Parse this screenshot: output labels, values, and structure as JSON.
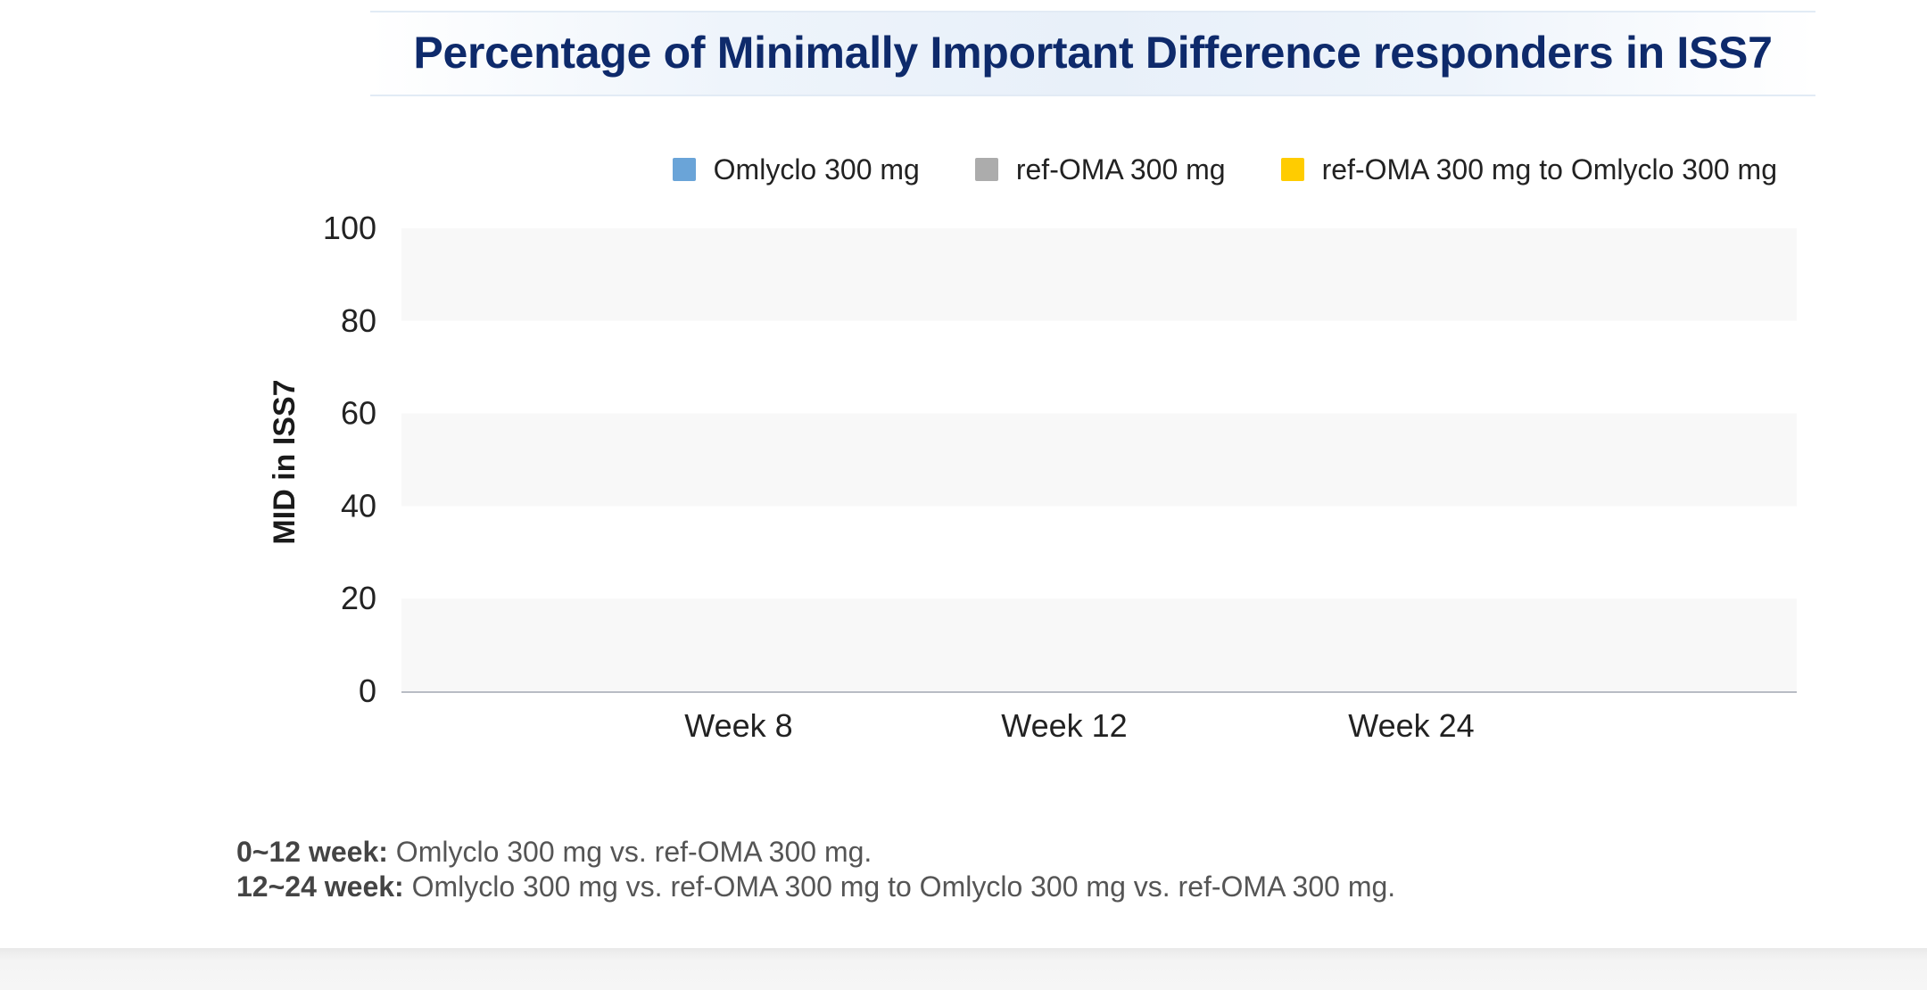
{
  "chart_data": {
    "type": "bar",
    "title": "Percentage of Minimally Important Difference responders in ISS7",
    "xlabel": "",
    "ylabel": "MID in ISS7",
    "categories": [
      "Week 8",
      "Week 12",
      "Week 24"
    ],
    "series": [
      {
        "name": "Omlyclo 300 mg",
        "color": "#6aa4d8",
        "values": [
          null,
          null,
          null
        ]
      },
      {
        "name": "ref-OMA 300 mg",
        "color": "#acacac",
        "values": [
          null,
          null,
          null
        ]
      },
      {
        "name": "ref-OMA 300 mg to Omlyclo 300 mg",
        "color": "#ffcc00",
        "values": [
          null,
          null,
          null
        ]
      }
    ],
    "ylim": [
      0,
      100
    ],
    "yticks": [
      0,
      20,
      40,
      60,
      80,
      100
    ],
    "grid": "alternating horizontal bands",
    "legend_position": "top-right"
  },
  "footnotes": [
    {
      "label": "0~12 week:",
      "text": "Omlyclo 300 mg vs. ref-OMA 300 mg."
    },
    {
      "label": "12~24 week:",
      "text": "Omlyclo 300 mg vs. ref-OMA 300 mg to Omlyclo 300 mg vs. ref-OMA 300 mg."
    }
  ]
}
